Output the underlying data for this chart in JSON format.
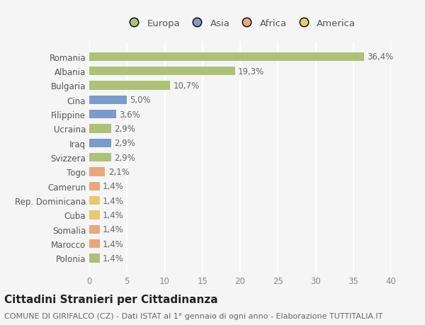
{
  "categories": [
    "Polonia",
    "Marocco",
    "Somalia",
    "Cuba",
    "Rep. Dominicana",
    "Camerun",
    "Togo",
    "Svizzera",
    "Iraq",
    "Ucraina",
    "Filippine",
    "Cina",
    "Bulgaria",
    "Albania",
    "Romania"
  ],
  "values": [
    1.4,
    1.4,
    1.4,
    1.4,
    1.4,
    1.4,
    2.1,
    2.9,
    2.9,
    2.9,
    3.6,
    5.0,
    10.7,
    19.3,
    36.4
  ],
  "labels": [
    "1,4%",
    "1,4%",
    "1,4%",
    "1,4%",
    "1,4%",
    "1,4%",
    "2,1%",
    "2,9%",
    "2,9%",
    "2,9%",
    "3,6%",
    "5,0%",
    "10,7%",
    "19,3%",
    "36,4%"
  ],
  "colors": [
    "#adc178",
    "#e8a87c",
    "#e8a87c",
    "#e8c96e",
    "#e8c96e",
    "#e8a87c",
    "#e8a87c",
    "#adc178",
    "#7b9bc8",
    "#adc178",
    "#7b9bc8",
    "#7b9bc8",
    "#adc178",
    "#adc178",
    "#adc178"
  ],
  "legend_labels": [
    "Europa",
    "Asia",
    "Africa",
    "America"
  ],
  "legend_colors": [
    "#adc178",
    "#7b9bc8",
    "#e8a87c",
    "#e8c96e"
  ],
  "title": "Cittadini Stranieri per Cittadinanza",
  "subtitle": "COMUNE DI GIRIFALCO (CZ) - Dati ISTAT al 1° gennaio di ogni anno - Elaborazione TUTTITALIA.IT",
  "xlim": [
    0,
    40
  ],
  "xticks": [
    0,
    5,
    10,
    15,
    20,
    25,
    30,
    35,
    40
  ],
  "background_color": "#f5f5f5",
  "grid_color": "#ffffff",
  "bar_height": 0.6,
  "title_fontsize": 11,
  "subtitle_fontsize": 8,
  "label_fontsize": 8.5,
  "tick_fontsize": 8.5,
  "legend_fontsize": 9.5
}
